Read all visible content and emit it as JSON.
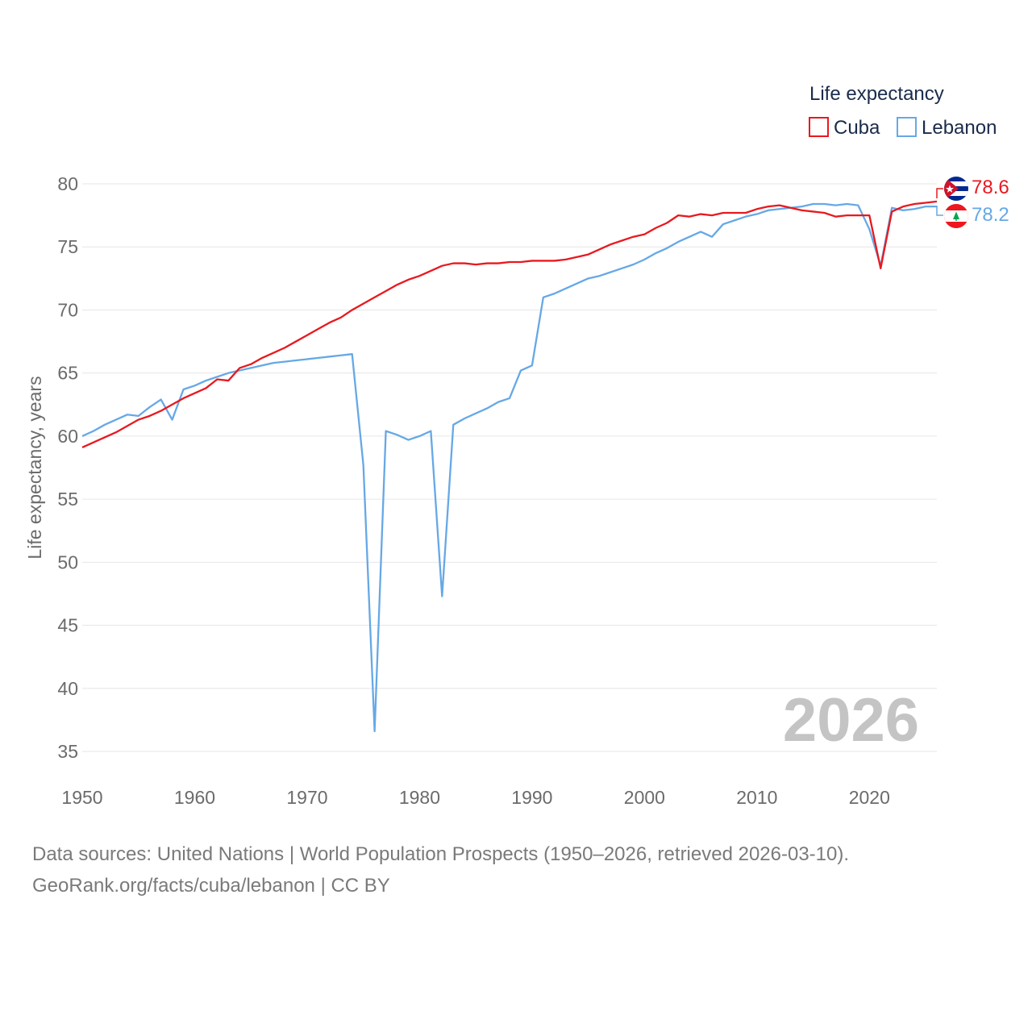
{
  "colors": {
    "cuba": "#e8191f",
    "lebanon": "#66a8e6",
    "grid": "#e6e6e6",
    "axis_text": "#6b6b6b",
    "legend_text": "#1a2b4a",
    "year": "#c4c4c4"
  },
  "legend": {
    "title": "Life expectancy",
    "items": [
      "Cuba",
      "Lebanon"
    ]
  },
  "year_label": "2026",
  "footer": {
    "line1": "Data sources: United Nations | World Population Prospects (1950–2026, retrieved 2026-03-10).",
    "line2": "GeoRank.org/facts/cuba/lebanon | CC BY"
  },
  "end_labels": {
    "cuba": "78.6",
    "lebanon": "78.2"
  },
  "chart_data": {
    "type": "line",
    "title": "Life expectancy",
    "xlabel": "",
    "ylabel": "Life expectancy, years",
    "xlim": [
      1950,
      2026
    ],
    "ylim": [
      35,
      80
    ],
    "x_ticks": [
      1950,
      1960,
      1970,
      1980,
      1990,
      2000,
      2010,
      2020
    ],
    "y_ticks": [
      35,
      40,
      45,
      50,
      55,
      60,
      65,
      70,
      75,
      80
    ],
    "grid": true,
    "legend_position": "top-right",
    "x": [
      1950,
      1951,
      1952,
      1953,
      1954,
      1955,
      1956,
      1957,
      1958,
      1959,
      1960,
      1961,
      1962,
      1963,
      1964,
      1965,
      1966,
      1967,
      1968,
      1969,
      1970,
      1971,
      1972,
      1973,
      1974,
      1975,
      1976,
      1977,
      1978,
      1979,
      1980,
      1981,
      1982,
      1983,
      1984,
      1985,
      1986,
      1987,
      1988,
      1989,
      1990,
      1991,
      1992,
      1993,
      1994,
      1995,
      1996,
      1997,
      1998,
      1999,
      2000,
      2001,
      2002,
      2003,
      2004,
      2005,
      2006,
      2007,
      2008,
      2009,
      2010,
      2011,
      2012,
      2013,
      2014,
      2015,
      2016,
      2017,
      2018,
      2019,
      2020,
      2021,
      2022,
      2023,
      2024,
      2025,
      2026
    ],
    "series": [
      {
        "name": "Cuba",
        "flag": "cuba-flag",
        "values": [
          59.1,
          59.5,
          59.9,
          60.3,
          60.8,
          61.3,
          61.6,
          62.0,
          62.5,
          63.0,
          63.4,
          63.8,
          64.5,
          64.4,
          65.4,
          65.7,
          66.2,
          66.6,
          67.0,
          67.5,
          68.0,
          68.5,
          69.0,
          69.4,
          70.0,
          70.5,
          71.0,
          71.5,
          72.0,
          72.4,
          72.7,
          73.1,
          73.5,
          73.7,
          73.7,
          73.6,
          73.7,
          73.7,
          73.8,
          73.8,
          73.9,
          73.9,
          73.9,
          74.0,
          74.2,
          74.4,
          74.8,
          75.2,
          75.5,
          75.8,
          76.0,
          76.5,
          76.9,
          77.5,
          77.4,
          77.6,
          77.5,
          77.7,
          77.7,
          77.7,
          78.0,
          78.2,
          78.3,
          78.1,
          77.9,
          77.8,
          77.7,
          77.4,
          77.5,
          77.5,
          77.5,
          73.3,
          77.8,
          78.2,
          78.4,
          78.5,
          78.6
        ]
      },
      {
        "name": "Lebanon",
        "flag": "lebanon-flag",
        "values": [
          60.0,
          60.4,
          60.9,
          61.3,
          61.7,
          61.6,
          62.3,
          62.9,
          61.3,
          63.7,
          64.0,
          64.4,
          64.7,
          65.0,
          65.2,
          65.4,
          65.6,
          65.8,
          65.9,
          66.0,
          66.1,
          66.2,
          66.3,
          66.4,
          66.5,
          57.7,
          36.6,
          60.4,
          60.1,
          59.7,
          60.0,
          60.4,
          47.3,
          60.9,
          61.4,
          61.8,
          62.2,
          62.7,
          63.0,
          65.2,
          65.6,
          71.0,
          71.3,
          71.7,
          72.1,
          72.5,
          72.7,
          73.0,
          73.3,
          73.6,
          74.0,
          74.5,
          74.9,
          75.4,
          75.8,
          76.2,
          75.8,
          76.8,
          77.1,
          77.4,
          77.6,
          77.9,
          78.0,
          78.1,
          78.2,
          78.4,
          78.4,
          78.3,
          78.4,
          78.3,
          76.4,
          73.5,
          78.1,
          77.9,
          78.0,
          78.2,
          78.2
        ]
      }
    ]
  }
}
